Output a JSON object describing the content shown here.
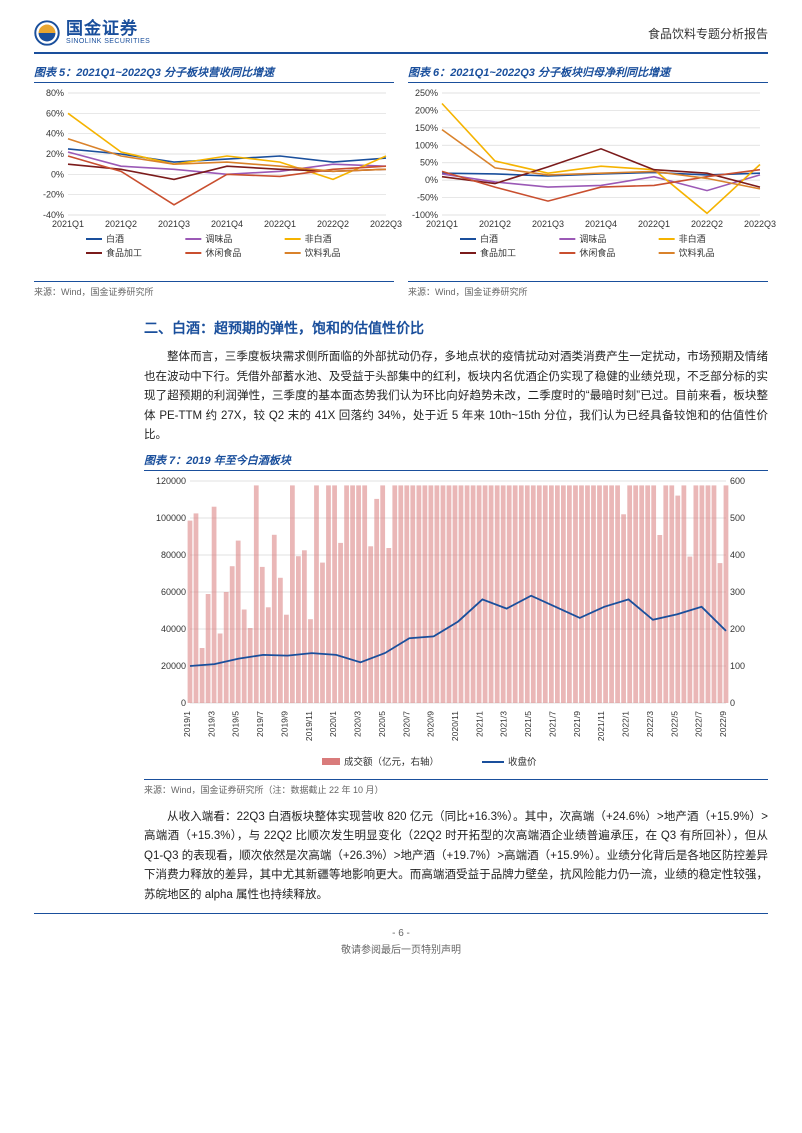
{
  "header": {
    "logo_cn": "国金证券",
    "logo_en": "SINOLINK SECURITIES",
    "report_type": "食品饮料专题分析报告"
  },
  "chart5": {
    "title_prefix": "图表 5：",
    "title": "2021Q1~2022Q3 分子板块营收同比增速",
    "source": "来源：Wind，国金证券研究所",
    "type": "line",
    "categories": [
      "2021Q1",
      "2021Q2",
      "2021Q3",
      "2021Q4",
      "2022Q1",
      "2022Q2",
      "2022Q3"
    ],
    "ylim": [
      -40,
      80
    ],
    "yticks": [
      -40,
      -20,
      0,
      20,
      40,
      60,
      80
    ],
    "series": [
      {
        "name": "白酒",
        "color": "#1a4f9c",
        "values": [
          25,
          20,
          12,
          15,
          18,
          12,
          16
        ]
      },
      {
        "name": "调味品",
        "color": "#9b59b6",
        "values": [
          22,
          8,
          5,
          0,
          3,
          10,
          8
        ]
      },
      {
        "name": "非白酒",
        "color": "#f5b300",
        "values": [
          60,
          22,
          10,
          18,
          12,
          -5,
          18
        ]
      },
      {
        "name": "食品加工",
        "color": "#7b1b1b",
        "values": [
          10,
          5,
          -5,
          8,
          5,
          3,
          5
        ]
      },
      {
        "name": "休闲食品",
        "color": "#c94f2f",
        "values": [
          18,
          3,
          -30,
          0,
          -2,
          5,
          8
        ]
      },
      {
        "name": "饮料乳品",
        "color": "#d9822b",
        "values": [
          35,
          18,
          10,
          12,
          8,
          3,
          5
        ]
      }
    ],
    "label_fontsize": 9,
    "grid_color": "#d9d9d9",
    "background_color": "#ffffff"
  },
  "chart6": {
    "title_prefix": "图表 6：",
    "title": "2021Q1~2022Q3 分子板块归母净利同比增速",
    "source": "来源：Wind，国金证券研究所",
    "type": "line",
    "categories": [
      "2021Q1",
      "2021Q2",
      "2021Q3",
      "2021Q4",
      "2022Q1",
      "2022Q2",
      "2022Q3"
    ],
    "ylim": [
      -100,
      250
    ],
    "yticks": [
      -100,
      -50,
      0,
      50,
      100,
      150,
      200,
      250
    ],
    "series": [
      {
        "name": "白酒",
        "color": "#1a4f9c",
        "values": [
          20,
          18,
          12,
          18,
          22,
          15,
          20
        ]
      },
      {
        "name": "调味品",
        "color": "#9b59b6",
        "values": [
          18,
          -5,
          -20,
          -15,
          10,
          -30,
          15
        ]
      },
      {
        "name": "非白酒",
        "color": "#f5b300",
        "values": [
          220,
          55,
          20,
          40,
          30,
          -95,
          45
        ]
      },
      {
        "name": "食品加工",
        "color": "#7b1b1b",
        "values": [
          10,
          -10,
          38,
          90,
          30,
          20,
          -20
        ]
      },
      {
        "name": "休闲食品",
        "color": "#c94f2f",
        "values": [
          25,
          -20,
          -60,
          -20,
          -15,
          10,
          30
        ]
      },
      {
        "name": "饮料乳品",
        "color": "#d9822b",
        "values": [
          145,
          35,
          15,
          20,
          25,
          5,
          -25
        ]
      }
    ],
    "label_fontsize": 9,
    "grid_color": "#d9d9d9",
    "background_color": "#ffffff"
  },
  "section2": {
    "heading": "二、白酒：超预期的弹性，饱和的估值性价比",
    "para1": "整体而言，三季度板块需求侧所面临的外部扰动仍存，多地点状的疫情扰动对酒类消费产生一定扰动，市场预期及情绪也在波动中下行。凭借外部蓄水池、及受益于头部集中的红利，板块内名优酒企仍实现了稳健的业绩兑现，不乏部分标的实现了超预期的利润弹性，三季度的基本面态势我们认为环比向好趋势未改，二季度时的“最暗时刻”已过。目前来看，板块整体 PE-TTM 约 27X，较 Q2 末的 41X 回落约 34%，处于近 5 年来 10th~15th 分位，我们认为已经具备较饱和的估值性价比。"
  },
  "chart7": {
    "title_prefix": "图表 7：",
    "title": "2019 年至今白酒板块",
    "source": "来源：Wind，国金证券研究所（注：数据截止 22 年 10 月）",
    "type": "bar_line",
    "background_color": "#ffffff",
    "grid_color": "#d9d9d9",
    "bar_color": "#d97b7b",
    "line_color": "#1a4f9c",
    "legend": [
      {
        "name": "成交额（亿元，右轴）",
        "color": "#d97b7b",
        "type": "bar"
      },
      {
        "name": "收盘价",
        "color": "#1a4f9c",
        "type": "line"
      }
    ],
    "x_labels": [
      "2019/1",
      "2019/3",
      "2019/5",
      "2019/7",
      "2019/9",
      "2019/11",
      "2020/1",
      "2020/3",
      "2020/5",
      "2020/7",
      "2020/9",
      "2020/11",
      "2021/1",
      "2021/3",
      "2021/5",
      "2021/7",
      "2021/9",
      "2021/11",
      "2022/1",
      "2022/3",
      "2022/5",
      "2022/7",
      "2022/9"
    ],
    "y_left": {
      "lim": [
        0,
        120000
      ],
      "ticks": [
        0,
        20000,
        40000,
        60000,
        80000,
        100000,
        120000
      ]
    },
    "y_right": {
      "lim": [
        0,
        600
      ],
      "ticks": [
        0,
        100,
        200,
        300,
        400,
        500,
        600
      ]
    },
    "line_values": [
      100,
      105,
      120,
      130,
      128,
      135,
      130,
      110,
      135,
      175,
      180,
      220,
      280,
      255,
      290,
      260,
      230,
      260,
      280,
      225,
      240,
      260,
      195
    ],
    "bar_density": 90,
    "bar_seed_hint": "irregular-volume"
  },
  "para2": "从收入端看：22Q3 白酒板块整体实现营收 820 亿元（同比+16.3%）。其中，次高端（+24.6%）>地产酒（+15.9%）>高端酒（+15.3%），与 22Q2 比顺次发生明显变化（22Q2 时开拓型的次高端酒企业绩普遍承压，在 Q3 有所回补），但从 Q1-Q3 的表现看，顺次依然是次高端（+26.3%）>地产酒（+19.7%）>高端酒（+15.9%）。业绩分化背后是各地区防控差异下消费力释放的差异，其中尤其新疆等地影响更大。而高端酒受益于品牌力壁垒，抗风险能力仍一流，业绩的稳定性较强，苏皖地区的 alpha 属性也持续释放。",
  "footer": {
    "page": "- 6 -",
    "disclaimer": "敬请参阅最后一页特别声明"
  }
}
